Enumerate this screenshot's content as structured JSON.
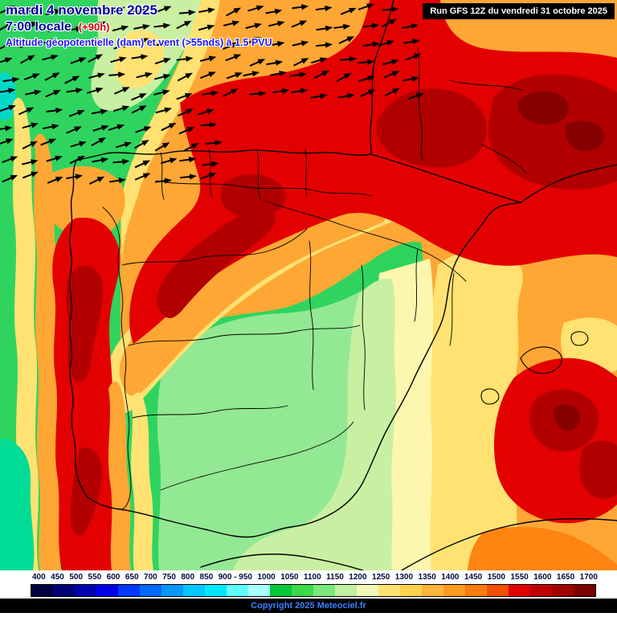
{
  "palette": {
    "orange": "#ffa735",
    "dark_orange": "#ff8412",
    "yellow": "#ffe272",
    "pale_yellow": "#fdf6ae",
    "pale_green": "#c9f0a2",
    "light_green": "#93e893",
    "green": "#2fd45f",
    "bright_green": "#00dc96",
    "turquoise": "#00d8c8",
    "red": "#e30000",
    "dark_red": "#b20000",
    "darkest_red": "#870000"
  },
  "header": {
    "date": "mardi 4 novembre 2025",
    "time": "7:00 locale",
    "offset": "(+90h)",
    "subtitle": "Altitude géopotentielle (dam) et vent (>55nds) à 1.5 PVU",
    "run_info": "Run GFS 12Z du vendredi 31 octobre 2025"
  },
  "legend": {
    "labels": [
      "400",
      "450",
      "500",
      "550",
      "600",
      "650",
      "700",
      "750",
      "800",
      "850",
      "900 - 950",
      "1000",
      "1050",
      "1100",
      "1150",
      "1200",
      "1250",
      "1300",
      "1350",
      "1400",
      "1450",
      "1500",
      "1550",
      "1600",
      "1650",
      "1700"
    ],
    "colors": [
      "#000040",
      "#000078",
      "#0000b0",
      "#0000e8",
      "#0038ff",
      "#0068ff",
      "#0098ff",
      "#00c8ff",
      "#00e8ff",
      "#60ffff",
      "#a8ffff",
      "#00c838",
      "#3cd84c",
      "#7ce87c",
      "#c0f0a0",
      "#f0f8b8",
      "#ffe272",
      "#ffd24e",
      "#ffb43c",
      "#ff9a20",
      "#ff7c0a",
      "#f25000",
      "#e30000",
      "#c00000",
      "#a00000",
      "#7c0000"
    ]
  },
  "footer": {
    "copyright": "Copyright 2025 Meteociel.fr"
  }
}
